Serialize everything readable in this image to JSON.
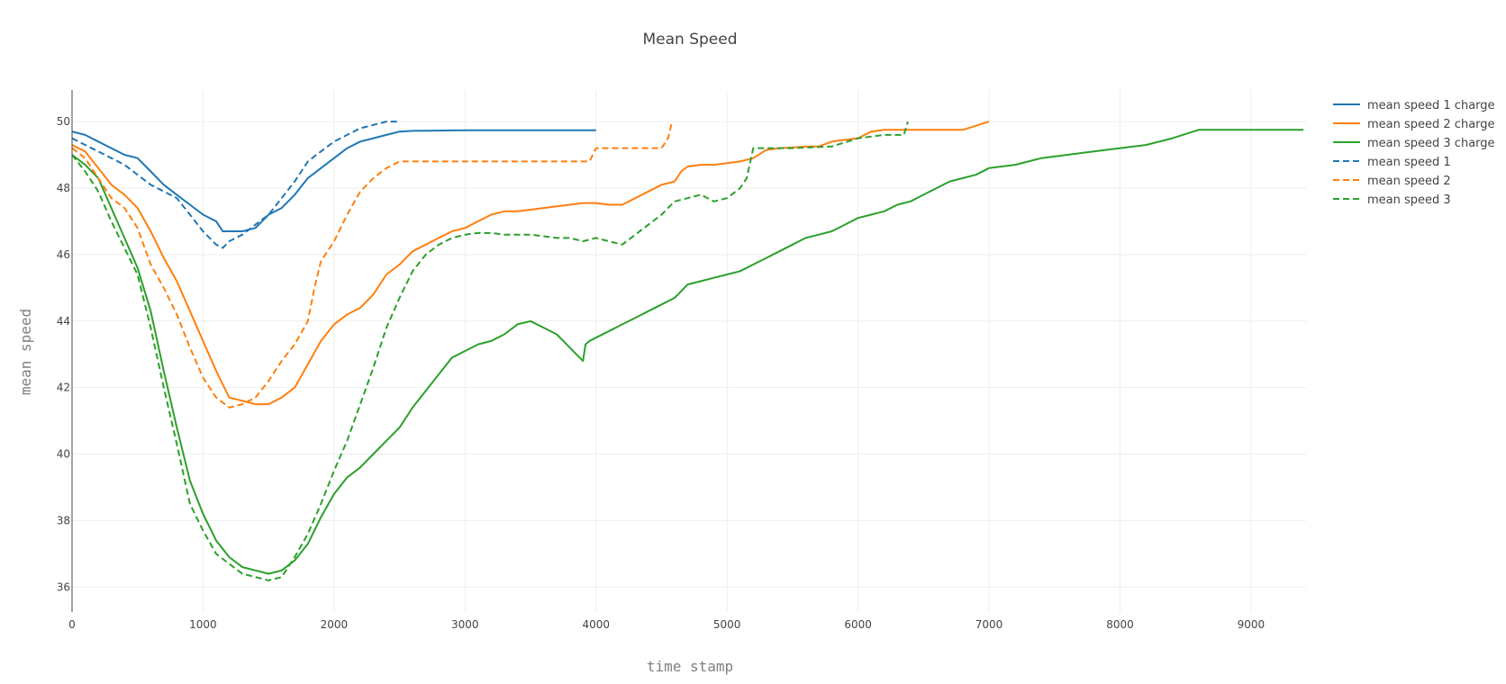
{
  "chart_data": {
    "type": "line",
    "title": "Mean Speed",
    "xlabel": "time stamp",
    "ylabel": "mean speed",
    "xlim": [
      0,
      9420
    ],
    "ylim": [
      35.25,
      50.95
    ],
    "x_ticks": [
      0,
      1000,
      2000,
      3000,
      4000,
      5000,
      6000,
      7000,
      8000,
      9000
    ],
    "y_ticks": [
      36,
      38,
      40,
      42,
      44,
      46,
      48,
      50
    ],
    "grid": true,
    "legend_position": "top-right",
    "series": [
      {
        "name": "mean speed 1 charge",
        "color": "#1f77b4",
        "dash": "solid",
        "x": [
          0,
          100,
          200,
          300,
          400,
          500,
          600,
          700,
          800,
          900,
          1000,
          1100,
          1150,
          1200,
          1300,
          1400,
          1500,
          1600,
          1700,
          1800,
          1900,
          2000,
          2100,
          2200,
          2300,
          2400,
          2500,
          2600,
          2800,
          3000,
          3500,
          4000
        ],
        "y": [
          49.7,
          49.6,
          49.4,
          49.2,
          49.0,
          48.9,
          48.5,
          48.1,
          47.8,
          47.5,
          47.2,
          47.0,
          46.7,
          46.7,
          46.7,
          46.8,
          47.2,
          47.4,
          47.8,
          48.3,
          48.6,
          48.9,
          49.2,
          49.4,
          49.5,
          49.6,
          49.7,
          49.72,
          49.73,
          49.74,
          49.74,
          49.74
        ]
      },
      {
        "name": "mean speed 2 charge",
        "color": "#ff7f0e",
        "dash": "solid",
        "x": [
          0,
          100,
          200,
          300,
          400,
          500,
          600,
          700,
          800,
          900,
          1000,
          1100,
          1200,
          1300,
          1400,
          1500,
          1600,
          1700,
          1800,
          1900,
          2000,
          2100,
          2200,
          2300,
          2400,
          2500,
          2600,
          2700,
          2800,
          2900,
          3000,
          3100,
          3200,
          3300,
          3400,
          3500,
          3600,
          3700,
          3800,
          3900,
          4000,
          4100,
          4200,
          4300,
          4400,
          4500,
          4600,
          4650,
          4700,
          4800,
          4900,
          5000,
          5100,
          5200,
          5300,
          5400,
          5500,
          5600,
          5700,
          5800,
          5900,
          6000,
          6100,
          6200,
          6400,
          6600,
          6800,
          7000
        ],
        "y": [
          49.3,
          49.1,
          48.6,
          48.1,
          47.8,
          47.4,
          46.7,
          45.9,
          45.2,
          44.3,
          43.4,
          42.5,
          41.7,
          41.6,
          41.5,
          41.5,
          41.7,
          42.0,
          42.7,
          43.4,
          43.9,
          44.2,
          44.4,
          44.8,
          45.4,
          45.7,
          46.1,
          46.3,
          46.5,
          46.7,
          46.8,
          47.0,
          47.2,
          47.3,
          47.3,
          47.35,
          47.4,
          47.45,
          47.5,
          47.55,
          47.55,
          47.5,
          47.5,
          47.7,
          47.9,
          48.1,
          48.2,
          48.5,
          48.65,
          48.7,
          48.7,
          48.75,
          48.8,
          48.9,
          49.15,
          49.2,
          49.22,
          49.25,
          49.25,
          49.4,
          49.45,
          49.5,
          49.7,
          49.75,
          49.75,
          49.75,
          49.75,
          50.0
        ]
      },
      {
        "name": "mean speed 3 charge",
        "color": "#2ca02c",
        "dash": "solid",
        "x": [
          0,
          100,
          200,
          300,
          400,
          500,
          600,
          700,
          800,
          900,
          1000,
          1100,
          1200,
          1300,
          1400,
          1500,
          1600,
          1700,
          1800,
          1900,
          2000,
          2100,
          2200,
          2300,
          2400,
          2500,
          2600,
          2700,
          2800,
          2900,
          3000,
          3100,
          3200,
          3300,
          3400,
          3500,
          3600,
          3700,
          3800,
          3850,
          3900,
          3920,
          3950,
          4000,
          4100,
          4200,
          4300,
          4400,
          4500,
          4600,
          4700,
          4800,
          4900,
          5000,
          5100,
          5200,
          5300,
          5400,
          5500,
          5600,
          5700,
          5800,
          5900,
          6000,
          6100,
          6200,
          6300,
          6400,
          6500,
          6600,
          6700,
          6800,
          6900,
          7000,
          7200,
          7400,
          7600,
          7800,
          8000,
          8200,
          8400,
          8600,
          8800,
          9000,
          9200,
          9400
        ],
        "y": [
          49.0,
          48.7,
          48.3,
          47.4,
          46.5,
          45.6,
          44.3,
          42.5,
          40.8,
          39.2,
          38.2,
          37.4,
          36.9,
          36.6,
          36.5,
          36.4,
          36.5,
          36.8,
          37.3,
          38.1,
          38.8,
          39.3,
          39.6,
          40.0,
          40.4,
          40.8,
          41.4,
          41.9,
          42.4,
          42.9,
          43.1,
          43.3,
          43.4,
          43.6,
          43.9,
          44.0,
          43.8,
          43.6,
          43.2,
          43.0,
          42.8,
          43.3,
          43.4,
          43.5,
          43.7,
          43.9,
          44.1,
          44.3,
          44.5,
          44.7,
          45.1,
          45.2,
          45.3,
          45.4,
          45.5,
          45.7,
          45.9,
          46.1,
          46.3,
          46.5,
          46.6,
          46.7,
          46.9,
          47.1,
          47.2,
          47.3,
          47.5,
          47.6,
          47.8,
          48.0,
          48.2,
          48.3,
          48.4,
          48.6,
          48.7,
          48.9,
          49.0,
          49.1,
          49.2,
          49.3,
          49.5,
          49.75,
          49.75,
          49.75,
          49.75,
          49.75
        ]
      },
      {
        "name": "mean speed 1",
        "color": "#1f77b4",
        "dash": "dashed",
        "x": [
          0,
          100,
          200,
          300,
          400,
          500,
          600,
          700,
          800,
          900,
          1000,
          1050,
          1100,
          1150,
          1200,
          1250,
          1300,
          1400,
          1500,
          1600,
          1700,
          1800,
          1900,
          2000,
          2100,
          2200,
          2300,
          2400,
          2500
        ],
        "y": [
          49.5,
          49.3,
          49.1,
          48.9,
          48.7,
          48.4,
          48.1,
          47.9,
          47.7,
          47.2,
          46.7,
          46.5,
          46.3,
          46.2,
          46.4,
          46.5,
          46.6,
          46.9,
          47.2,
          47.7,
          48.2,
          48.8,
          49.1,
          49.4,
          49.6,
          49.8,
          49.9,
          50.0,
          50.0
        ]
      },
      {
        "name": "mean speed 2",
        "color": "#ff7f0e",
        "dash": "dashed",
        "x": [
          0,
          100,
          200,
          300,
          400,
          500,
          600,
          700,
          800,
          900,
          1000,
          1100,
          1200,
          1300,
          1400,
          1500,
          1600,
          1700,
          1800,
          1850,
          1900,
          2000,
          2100,
          2200,
          2300,
          2400,
          2500,
          2700,
          3000,
          3500,
          3950,
          4000,
          4500,
          4550,
          4580
        ],
        "y": [
          49.2,
          48.9,
          48.3,
          47.7,
          47.4,
          46.8,
          45.7,
          45.0,
          44.2,
          43.2,
          42.3,
          41.7,
          41.4,
          41.5,
          41.7,
          42.2,
          42.8,
          43.3,
          44.0,
          45.0,
          45.8,
          46.4,
          47.2,
          47.9,
          48.3,
          48.6,
          48.8,
          48.8,
          48.8,
          48.8,
          48.8,
          49.2,
          49.2,
          49.5,
          50.0
        ]
      },
      {
        "name": "mean speed 3",
        "color": "#2ca02c",
        "dash": "dashed",
        "x": [
          0,
          100,
          200,
          300,
          400,
          500,
          600,
          700,
          800,
          900,
          1000,
          1100,
          1200,
          1300,
          1400,
          1500,
          1600,
          1700,
          1800,
          1900,
          2000,
          2100,
          2200,
          2300,
          2400,
          2500,
          2600,
          2700,
          2800,
          2900,
          3000,
          3100,
          3200,
          3300,
          3400,
          3500,
          3600,
          3700,
          3800,
          3900,
          4000,
          4100,
          4200,
          4300,
          4400,
          4500,
          4550,
          4600,
          4700,
          4800,
          4900,
          5000,
          5100,
          5150,
          5200,
          5300,
          5500,
          5800,
          6000,
          6200,
          6350,
          6380
        ],
        "y": [
          49.0,
          48.5,
          47.9,
          47.0,
          46.2,
          45.4,
          43.8,
          42.0,
          40.3,
          38.5,
          37.7,
          37.0,
          36.7,
          36.4,
          36.3,
          36.2,
          36.3,
          36.9,
          37.6,
          38.5,
          39.5,
          40.4,
          41.5,
          42.6,
          43.8,
          44.7,
          45.5,
          46.0,
          46.3,
          46.5,
          46.6,
          46.65,
          46.65,
          46.6,
          46.6,
          46.6,
          46.55,
          46.5,
          46.5,
          46.4,
          46.5,
          46.4,
          46.3,
          46.6,
          46.9,
          47.2,
          47.4,
          47.6,
          47.7,
          47.8,
          47.6,
          47.7,
          48.0,
          48.3,
          49.2,
          49.2,
          49.2,
          49.25,
          49.5,
          49.6,
          49.6,
          50.0
        ]
      }
    ]
  }
}
